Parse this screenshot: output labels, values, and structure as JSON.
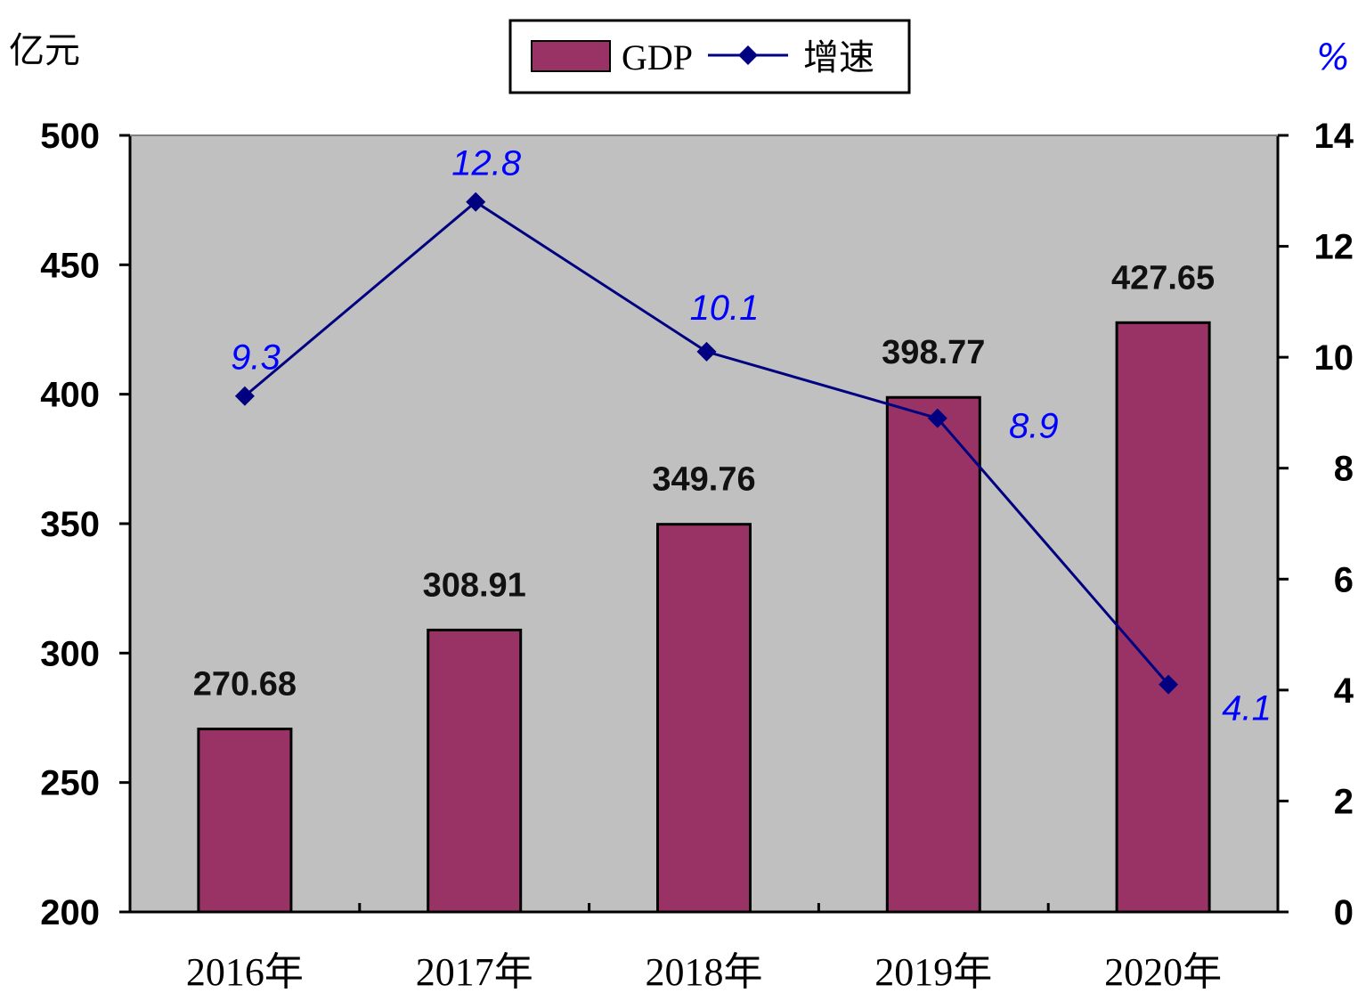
{
  "chart_data": {
    "type": "bar",
    "categories": [
      "2016年",
      "2017年",
      "2018年",
      "2019年",
      "2020年"
    ],
    "series": [
      {
        "name": "GDP",
        "type": "bar",
        "axis": "left",
        "values": [
          270.68,
          308.91,
          349.76,
          398.77,
          427.65
        ]
      },
      {
        "name": "增速",
        "type": "line",
        "axis": "right",
        "values": [
          9.3,
          12.8,
          10.1,
          8.9,
          4.1
        ]
      }
    ],
    "y_left": {
      "unit": "亿元",
      "lim": [
        200,
        500
      ],
      "ticks": [
        200,
        250,
        300,
        350,
        400,
        450,
        500
      ]
    },
    "y_right": {
      "unit": "%",
      "lim": [
        0,
        14
      ],
      "ticks": [
        0,
        2,
        4,
        6,
        8,
        10,
        12,
        14
      ]
    },
    "legend": {
      "position": "top-center"
    },
    "grid": false
  },
  "colors": {
    "bar": "#993366",
    "line": "#000080",
    "line_label": "#0000ff",
    "plot_bg": "#c0c0c0",
    "right_unit": "#0000ff"
  }
}
